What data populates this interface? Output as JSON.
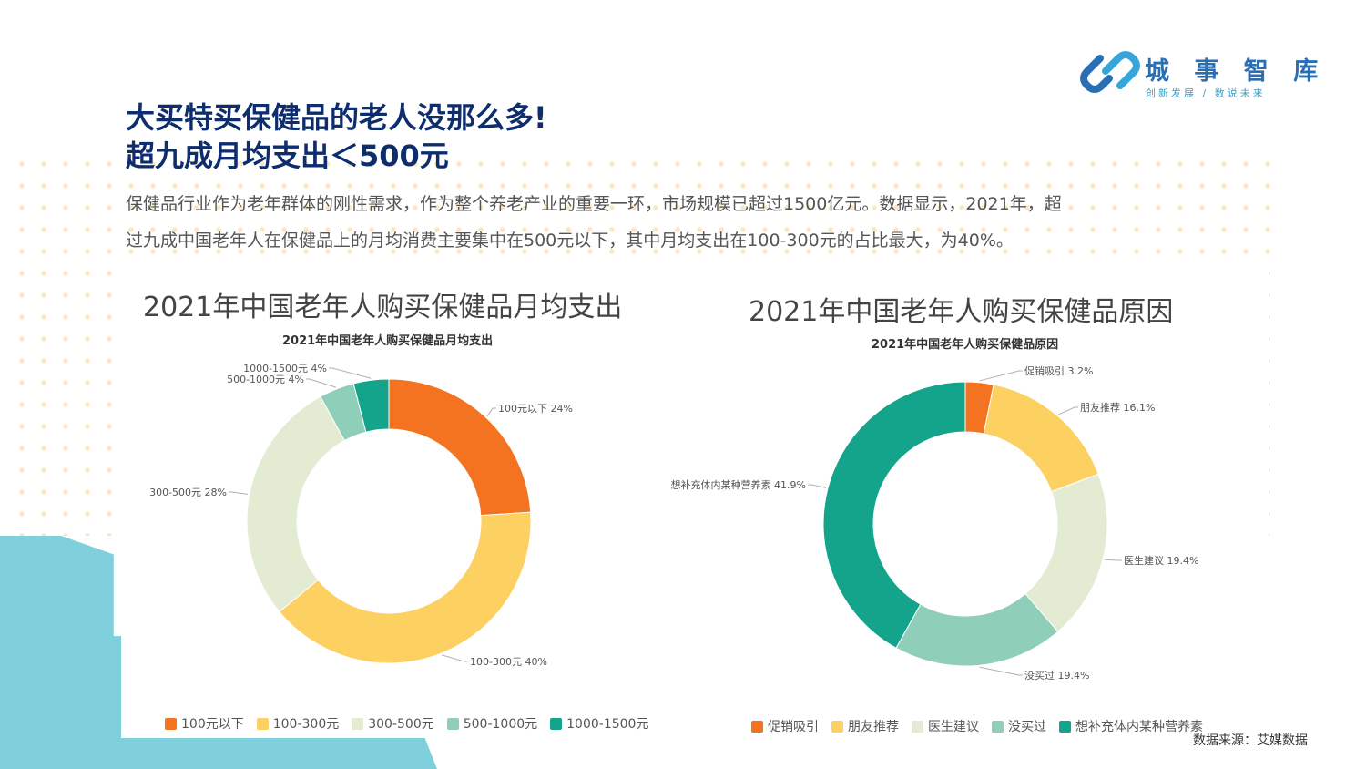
{
  "brand": {
    "name": "城 事 智 库",
    "tagline": "创新发展 / 数说未来"
  },
  "headline": {
    "line1": "大买特买保健品的老人没那么多!",
    "line2": "超九成月均支出＜500元"
  },
  "intro": {
    "line1": "保健品行业作为老年群体的刚性需求，作为整个养老产业的重要一环，市场规模已超过1500亿元。数据显示，2021年，超",
    "line2": "过九成中国老年人在保健品上的月均消费主要集中在500元以下，其中月均支出在100-300元的占比最大，为40%。"
  },
  "source": "数据来源：艾媒数据",
  "colors": {
    "accent": "#0d2d6c",
    "teal_block": "#7fd0dc"
  },
  "chart_data": [
    {
      "type": "pie",
      "donut": true,
      "title": "2021年中国老年人购买保健品月均支出",
      "subtitle": "2021年中国老年人购买保健品月均支出",
      "categories": [
        "100元以下",
        "100-300元",
        "300-500元",
        "500-1000元",
        "1000-1500元"
      ],
      "values": [
        24,
        40,
        28,
        4,
        4
      ],
      "labels": [
        "100元以下 24%",
        "100-300元 40%",
        "300-500元 28%",
        "500-1000元 4%",
        "1000-1500元 4%"
      ],
      "colors": [
        "#f47320",
        "#fcd061",
        "#e3ebd2",
        "#8fceb9",
        "#14a38b"
      ],
      "legend": "bottom"
    },
    {
      "type": "pie",
      "donut": true,
      "title": "2021年中国老年人购买保健品原因",
      "subtitle": "2021年中国老年人购买保健品原因",
      "categories": [
        "促销吸引",
        "朋友推荐",
        "医生建议",
        "没买过",
        "想补充体内某种营养素"
      ],
      "values": [
        3.2,
        16.1,
        19.4,
        19.4,
        41.9
      ],
      "labels": [
        "促销吸引 3.2%",
        "朋友推荐 16.1%",
        "医生建议 19.4%",
        "没买过 19.4%",
        "想补充体内某种营养素 41.9%"
      ],
      "colors": [
        "#f47320",
        "#fcd061",
        "#e3ebd2",
        "#8fceb9",
        "#14a38b"
      ],
      "legend": "bottom"
    }
  ]
}
